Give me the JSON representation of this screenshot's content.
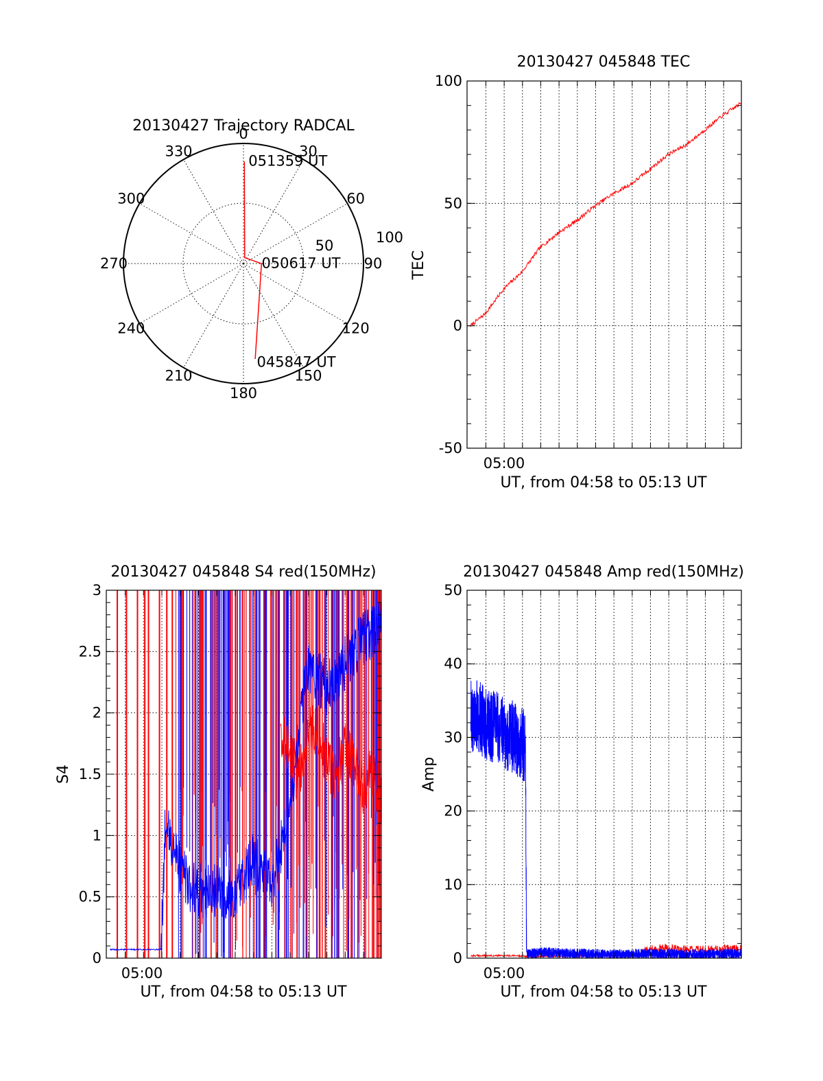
{
  "chart_data": [
    {
      "id": "trajectory",
      "type": "polar",
      "title": "20130427 Trajectory RADCAL",
      "angle_labels": [
        "0",
        "30",
        "60",
        "90",
        "120",
        "150",
        "180",
        "210",
        "240",
        "270",
        "300",
        "330"
      ],
      "radial_labels": [
        "50",
        "100"
      ],
      "rlim": [
        0,
        100
      ],
      "grid": true,
      "line_color": "#ff0000",
      "track": [
        {
          "az": 0.5,
          "r": 85
        },
        {
          "az": 12,
          "r": 5
        },
        {
          "az": 90,
          "r": 15
        },
        {
          "az": 173,
          "r": 80
        }
      ],
      "annotations": [
        {
          "text": "051359 UT",
          "az": 2,
          "r": 86
        },
        {
          "text": "050617 UT",
          "az": 86,
          "r": 14
        },
        {
          "text": "045847 UT",
          "az": 173,
          "r": 82
        }
      ]
    },
    {
      "id": "tec",
      "type": "line",
      "title": "20130427 045848 TEC",
      "xlabel": "UT, from 04:58 to 05:13 UT",
      "ylabel": "TEC",
      "xlim": [
        0,
        15
      ],
      "ylim": [
        -50,
        100
      ],
      "x_tick_label": "05:00",
      "y_ticks": [
        "-50",
        "0",
        "50",
        "100"
      ],
      "grid": true,
      "series": [
        {
          "color": "#ff0000",
          "x": [
            0.2,
            1,
            2,
            3,
            4,
            5,
            6,
            7,
            8,
            9,
            10,
            11,
            12,
            13,
            14,
            15
          ],
          "y": [
            0,
            5,
            15,
            22,
            32,
            38,
            43,
            49,
            54,
            58,
            64,
            70,
            74,
            80,
            86,
            91
          ]
        }
      ]
    },
    {
      "id": "s4",
      "type": "line",
      "title": "20130427 045848 S4 red(150MHz)",
      "xlabel": "UT, from 04:58 to 05:13 UT",
      "ylabel": "S4",
      "xlim": [
        0,
        15
      ],
      "ylim": [
        0,
        3
      ],
      "x_tick_label": "05:00",
      "y_ticks": [
        "0",
        "0.5",
        "1",
        "1.5",
        "2",
        "2.5",
        "3"
      ],
      "grid": true,
      "series": [
        {
          "color": "#0000ff",
          "x": [
            0.2,
            3,
            3.2,
            3.5,
            4,
            4.5,
            5,
            6,
            7,
            8,
            9,
            10,
            11,
            12,
            13,
            14,
            15
          ],
          "y": [
            0.07,
            0.07,
            1.05,
            0.95,
            0.75,
            0.6,
            0.55,
            0.55,
            0.5,
            0.8,
            0.6,
            1.2,
            2.4,
            2.2,
            2.4,
            2.6,
            2.7
          ]
        },
        {
          "color": "#ff0000",
          "x": [
            9.5,
            10,
            10.5,
            11,
            11.5,
            12,
            12.5,
            13,
            13.5,
            14,
            14.5,
            15
          ],
          "y": [
            1.8,
            1.7,
            1.5,
            1.8,
            1.9,
            1.6,
            1.5,
            1.7,
            1.6,
            1.4,
            1.5,
            1.3
          ]
        }
      ]
    },
    {
      "id": "amp",
      "type": "line",
      "title": "20130427 045848 Amp red(150MHz)",
      "xlabel": "UT, from 04:58 to 05:13 UT",
      "ylabel": "Amp",
      "xlim": [
        0,
        15
      ],
      "ylim": [
        0,
        50
      ],
      "x_tick_label": "05:00",
      "y_ticks": [
        "0",
        "10",
        "20",
        "30",
        "40",
        "50"
      ],
      "grid": true,
      "series": [
        {
          "color": "#0000ff",
          "x": [
            0.2,
            0.5,
            1,
            1.5,
            2,
            2.5,
            3,
            3.2,
            3.25,
            4,
            6,
            8,
            10,
            12,
            15
          ],
          "y": [
            33,
            33,
            32,
            31.5,
            30.5,
            30,
            29,
            29,
            0.5,
            0.8,
            0.6,
            0.5,
            0.6,
            0.5,
            0.6
          ]
        },
        {
          "color": "#ff0000",
          "x": [
            0.2,
            3,
            3.25,
            9.5,
            10,
            11,
            12,
            13,
            14,
            15
          ],
          "y": [
            0.2,
            0.2,
            0.1,
            0.3,
            0.6,
            0.8,
            0.5,
            0.5,
            0.6,
            0.7
          ]
        }
      ]
    }
  ]
}
